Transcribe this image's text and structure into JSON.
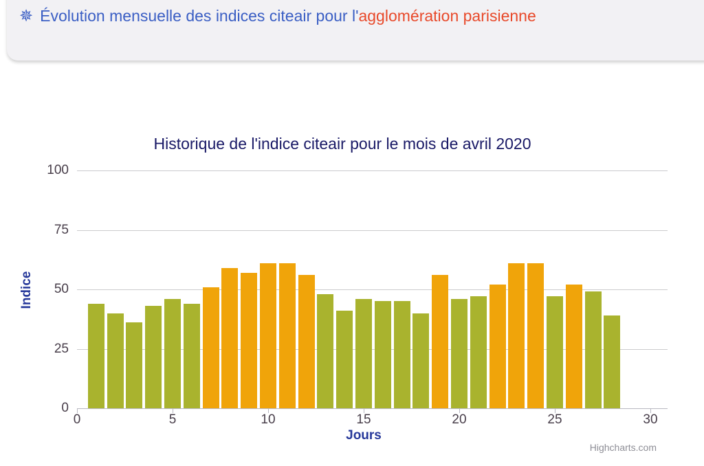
{
  "header": {
    "icon_glyph": "✵",
    "title_main": "Évolution mensuelle des indices citeair pour l'",
    "title_highlight": "agglomération parisienne",
    "colors": {
      "main": "#3a5ec4",
      "highlight": "#e8492a"
    }
  },
  "chart_data": {
    "type": "bar",
    "title": "Historique de l'indice citeair pour le mois de avril 2020",
    "xlabel": "Jours",
    "ylabel": "Indice",
    "x": [
      1,
      2,
      3,
      4,
      5,
      6,
      7,
      8,
      9,
      10,
      11,
      12,
      13,
      14,
      15,
      16,
      17,
      18,
      19,
      20,
      21,
      22,
      23,
      24,
      25,
      26,
      27,
      28
    ],
    "values": [
      44,
      40,
      36,
      43,
      46,
      44,
      51,
      59,
      57,
      61,
      61,
      56,
      48,
      41,
      46,
      45,
      45,
      40,
      56,
      46,
      47,
      52,
      61,
      61,
      47,
      52,
      49,
      39
    ],
    "bar_colors": [
      "green",
      "green",
      "green",
      "green",
      "green",
      "green",
      "orange",
      "orange",
      "orange",
      "orange",
      "orange",
      "orange",
      "green",
      "green",
      "green",
      "green",
      "green",
      "green",
      "orange",
      "green",
      "green",
      "orange",
      "orange",
      "orange",
      "green",
      "orange",
      "green",
      "green"
    ],
    "palette": {
      "green": "#a9b32e",
      "orange": "#f0a40a"
    },
    "xticks": [
      0,
      5,
      10,
      15,
      20,
      25,
      30
    ],
    "yticks": [
      0,
      25,
      50,
      75,
      100
    ],
    "xlim": [
      0,
      30
    ],
    "ylim": [
      0,
      100
    ],
    "grid": "horizontal",
    "legend": "none",
    "credit": "Highcharts.com"
  }
}
